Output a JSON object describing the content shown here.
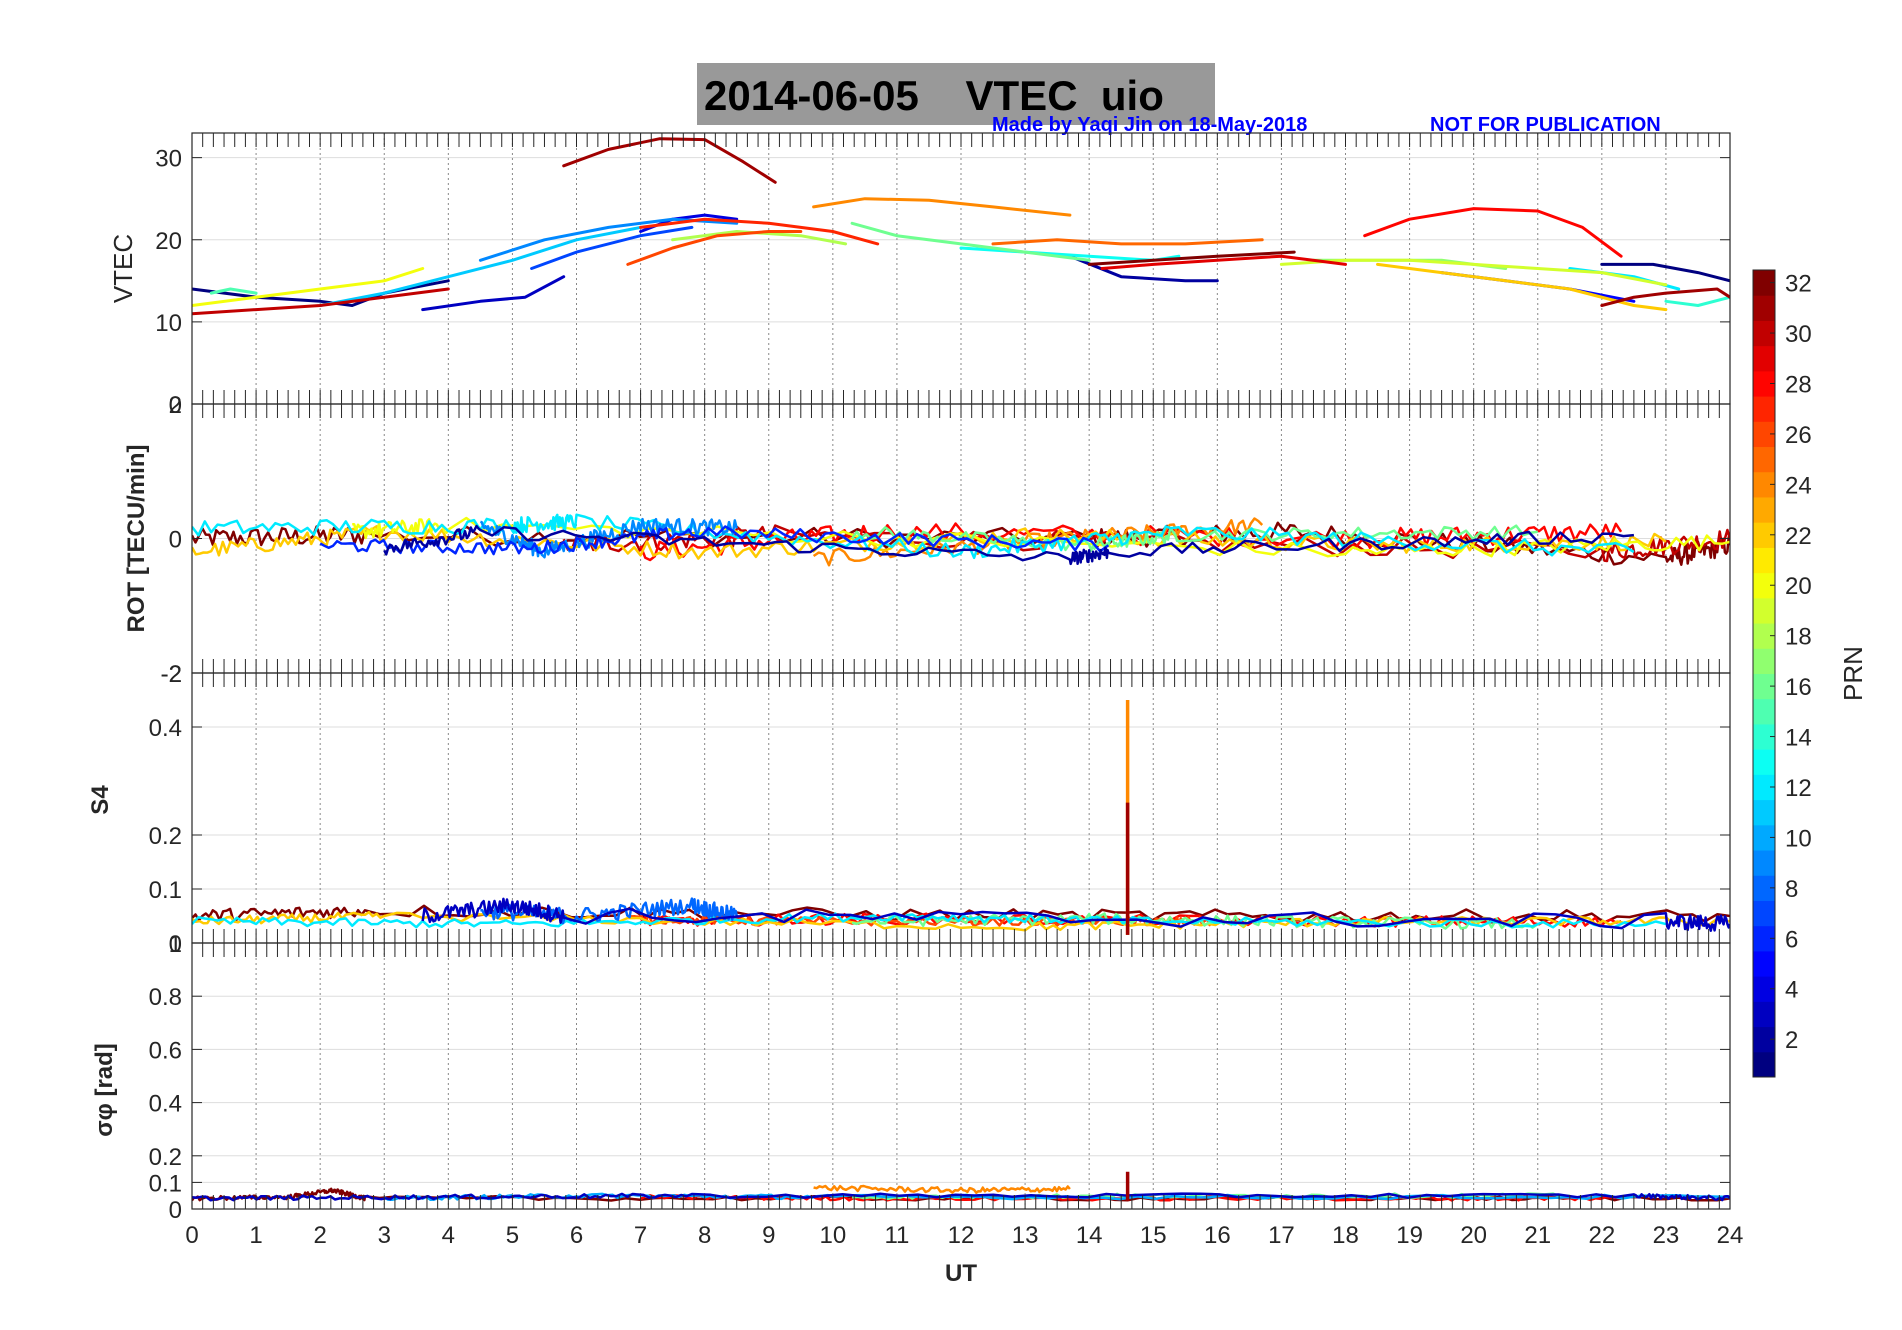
{
  "title": {
    "text": "2014-06-05    VTEC  uio",
    "credit": "Made by Yaqi Jin on 18-May-2018",
    "notice": "NOT FOR PUBLICATION"
  },
  "chart_data": [
    {
      "type": "line",
      "panel": "vtec",
      "ylabel": "VTEC",
      "ylim": [
        0,
        33
      ],
      "yticks": [
        "0",
        "10",
        "20",
        "30"
      ],
      "ytick_values": [
        0,
        10,
        20,
        30
      ],
      "xlim": [
        0,
        24
      ],
      "series": [
        {
          "name": "PRN 1",
          "prn": 1,
          "x": [
            0,
            1,
            2,
            2.5,
            3,
            4
          ],
          "y": [
            14,
            13,
            12.5,
            12,
            13.5,
            15
          ]
        },
        {
          "name": "PRN 3",
          "prn": 3,
          "x": [
            3.6,
            4.5,
            5.2,
            5.8
          ],
          "y": [
            11.5,
            12.5,
            13,
            15.5
          ]
        },
        {
          "name": "PRN 4",
          "prn": 4,
          "x": [
            7,
            7.5,
            8,
            8.5
          ],
          "y": [
            21,
            22.5,
            23,
            22.5
          ]
        },
        {
          "name": "PRN 2",
          "prn": 2,
          "x": [
            13.7,
            14.5,
            15.5,
            16
          ],
          "y": [
            18,
            15.5,
            15,
            15
          ]
        },
        {
          "name": "PRN 5",
          "prn": 5,
          "x": [
            19.5,
            20.5,
            21.5,
            22.5
          ],
          "y": [
            16,
            15,
            14,
            12.5
          ]
        },
        {
          "name": "PRN 1b",
          "prn": 1,
          "x": [
            22,
            22.8,
            23.5,
            24
          ],
          "y": [
            17,
            17,
            16,
            15
          ]
        },
        {
          "name": "PRN 7",
          "prn": 7,
          "x": [
            5.3,
            6,
            7,
            7.8
          ],
          "y": [
            16.5,
            18.5,
            20.5,
            21.5
          ]
        },
        {
          "name": "PRN 9",
          "prn": 9,
          "x": [
            4.5,
            5.5,
            6.5,
            7.5,
            8.5
          ],
          "y": [
            17.5,
            20,
            21.5,
            22.5,
            22
          ]
        },
        {
          "name": "PRN 11",
          "prn": 11,
          "x": [
            2,
            3,
            4,
            5,
            6,
            7
          ],
          "y": [
            12,
            13.5,
            15.5,
            17.5,
            20,
            21.5
          ]
        },
        {
          "name": "PRN 13",
          "prn": 13,
          "x": [
            12,
            13,
            14,
            15,
            15.4
          ],
          "y": [
            19,
            18.5,
            18,
            17.5,
            18
          ]
        },
        {
          "name": "PRN 12",
          "prn": 12,
          "x": [
            21.5,
            22.5,
            23.2
          ],
          "y": [
            16.5,
            15.5,
            14
          ]
        },
        {
          "name": "PRN 14",
          "prn": 14,
          "x": [
            23,
            23.5,
            24
          ],
          "y": [
            12.5,
            12,
            13
          ]
        },
        {
          "name": "PRN 15",
          "prn": 15,
          "x": [
            0.3,
            0.6,
            1
          ],
          "y": [
            13.5,
            14,
            13.5
          ]
        },
        {
          "name": "PRN 16",
          "prn": 16,
          "x": [
            10.3,
            11,
            12,
            13,
            14
          ],
          "y": [
            22,
            20.5,
            19.5,
            18.5,
            17.5
          ]
        },
        {
          "name": "PRN 17",
          "prn": 17,
          "x": [
            17.5,
            18.5,
            19.5,
            20.5
          ],
          "y": [
            17.5,
            17.5,
            17.5,
            16.5
          ]
        },
        {
          "name": "PRN 18",
          "prn": 18,
          "x": [
            7.5,
            8.5,
            9.5,
            10.2
          ],
          "y": [
            20,
            21,
            20.5,
            19.5
          ]
        },
        {
          "name": "PRN 19",
          "prn": 19,
          "x": [
            17,
            18,
            19,
            20,
            21,
            22,
            23
          ],
          "y": [
            17,
            17.5,
            17.5,
            17,
            16.5,
            16,
            14.5
          ]
        },
        {
          "name": "PRN 20",
          "prn": 20,
          "x": [
            0,
            1,
            2,
            3,
            3.6
          ],
          "y": [
            12,
            13,
            14,
            15,
            16.5
          ]
        },
        {
          "name": "PRN 22",
          "prn": 22,
          "x": [
            18.5,
            19.5,
            20.5,
            21.5,
            22.5,
            23
          ],
          "y": [
            17,
            16,
            15,
            14,
            12,
            11.5
          ]
        },
        {
          "name": "PRN 24",
          "prn": 24,
          "x": [
            9.7,
            10.5,
            11.5,
            12.5,
            13.7
          ],
          "y": [
            24,
            25,
            24.8,
            24,
            23
          ]
        },
        {
          "name": "PRN 25",
          "prn": 25,
          "x": [
            12.5,
            13.5,
            14.5,
            15.5,
            16.7
          ],
          "y": [
            19.5,
            20,
            19.5,
            19.5,
            20
          ]
        },
        {
          "name": "PRN 26",
          "prn": 26,
          "x": [
            6.8,
            7.5,
            8.2,
            9,
            9.5
          ],
          "y": [
            17,
            19,
            20.5,
            21,
            21
          ]
        },
        {
          "name": "PRN 28",
          "prn": 28,
          "x": [
            18.3,
            19,
            20,
            21,
            21.7,
            22.3
          ],
          "y": [
            20.5,
            22.5,
            23.8,
            23.5,
            21.5,
            18
          ]
        },
        {
          "name": "PRN 27",
          "prn": 27,
          "x": [
            7,
            8,
            9,
            10,
            10.7
          ],
          "y": [
            21.5,
            22.5,
            22,
            21,
            19.5
          ]
        },
        {
          "name": "PRN 29",
          "prn": 29,
          "x": [
            14.2,
            15,
            16,
            17,
            18
          ],
          "y": [
            16.5,
            17,
            17.5,
            18,
            17
          ]
        },
        {
          "name": "PRN 30",
          "prn": 30,
          "x": [
            0,
            1,
            2,
            3,
            4
          ],
          "y": [
            11,
            11.5,
            12,
            13,
            14
          ]
        },
        {
          "name": "PRN 31",
          "prn": 31,
          "x": [
            5.8,
            6.5,
            7.3,
            8,
            8.6,
            9.1
          ],
          "y": [
            29,
            31,
            32.3,
            32.2,
            29.5,
            27
          ]
        },
        {
          "name": "PRN 32",
          "prn": 32,
          "x": [
            14,
            15,
            16,
            17.2
          ],
          "y": [
            17,
            17.5,
            18,
            18.5
          ]
        },
        {
          "name": "PRN 31b",
          "prn": 31,
          "x": [
            22,
            22.5,
            23,
            23.8,
            24
          ],
          "y": [
            12,
            13,
            13.5,
            14,
            13
          ]
        }
      ]
    },
    {
      "type": "line",
      "panel": "rot",
      "ylabel": "ROT [TECU/min]",
      "ylim": [
        -2,
        2
      ],
      "yticks": [
        "-2",
        "0",
        "2"
      ],
      "ytick_values": [
        -2,
        0,
        2
      ],
      "xlim": [
        0,
        24
      ],
      "series": [
        {
          "name": "PRN 32",
          "prn": 32,
          "x": [
            0,
            2.7,
            14,
            17.2,
            23,
            24
          ],
          "level": [
            0,
            0.05,
            0,
            0.1,
            -0.3,
            -0.1
          ],
          "noise": 0.15
        },
        {
          "name": "PRN 30",
          "prn": 30,
          "x": [
            5.8,
            9.1,
            22,
            24
          ],
          "level": [
            -0.1,
            0.05,
            -0.2,
            0
          ],
          "noise": 0.15
        },
        {
          "name": "PRN 28",
          "prn": 28,
          "x": [
            7,
            10.7,
            18.3,
            22.3
          ],
          "level": [
            -0.2,
            0.1,
            0,
            0.1
          ],
          "noise": 0.15
        },
        {
          "name": "PRN 24",
          "prn": 24,
          "x": [
            9.7,
            13.7,
            16.7
          ],
          "level": [
            -0.3,
            0,
            0.2
          ],
          "noise": 0.12
        },
        {
          "name": "PRN 22",
          "prn": 22,
          "x": [
            0,
            3,
            8,
            13,
            18.5,
            23
          ],
          "level": [
            -0.2,
            0.1,
            -0.2,
            0.05,
            -0.1,
            -0.05
          ],
          "noise": 0.12
        },
        {
          "name": "PRN 20",
          "prn": 20,
          "x": [
            2.5,
            4,
            18,
            24
          ],
          "level": [
            0.1,
            0.2,
            -0.2,
            -0.05
          ],
          "noise": 0.12
        },
        {
          "name": "PRN 16",
          "prn": 16,
          "x": [
            10.3,
            14,
            15.4,
            21
          ],
          "level": [
            0.1,
            -0.1,
            0.05,
            0.1
          ],
          "noise": 0.1
        },
        {
          "name": "PRN 12",
          "prn": 12,
          "x": [
            0,
            5,
            6,
            12,
            15.4,
            22.5
          ],
          "level": [
            0.15,
            0.2,
            0.25,
            -0.2,
            0.1,
            -0.2
          ],
          "noise": 0.12
        },
        {
          "name": "PRN 9",
          "prn": 9,
          "x": [
            4.5,
            5.5,
            7,
            8.5
          ],
          "level": [
            0.2,
            -0.2,
            0.2,
            0.15
          ],
          "noise": 0.12
        },
        {
          "name": "PRN 6",
          "prn": 6,
          "x": [
            2,
            5.3,
            7.8,
            14.3
          ],
          "level": [
            -0.1,
            -0.15,
            0.1,
            -0.1
          ],
          "noise": 0.1
        },
        {
          "name": "PRN 2",
          "prn": 2,
          "x": [
            3,
            4.5,
            13.7,
            14.3,
            22.5
          ],
          "level": [
            -0.15,
            0.1,
            -0.3,
            -0.2,
            0.05
          ],
          "noise": 0.1
        }
      ]
    },
    {
      "type": "line",
      "panel": "s4",
      "ylabel": "S4",
      "ylim": [
        0,
        0.5
      ],
      "yticks": [
        "0",
        "0.1",
        "0.2",
        "0.4"
      ],
      "ytick_values": [
        0,
        0.1,
        0.2,
        0.4
      ],
      "top_label": "-2",
      "xlim": [
        0,
        24
      ],
      "spikes": [
        {
          "prn": 24,
          "x": 14.6,
          "y": 0.45
        },
        {
          "prn": 31,
          "x": 14.6,
          "y": 0.26
        }
      ],
      "series": [
        {
          "name": "PRN 32",
          "prn": 32,
          "x": [
            0,
            2.7,
            14.2,
            24
          ],
          "level": [
            0.05,
            0.06,
            0.05,
            0.05
          ],
          "noise": 0.012
        },
        {
          "name": "PRN 28",
          "prn": 28,
          "x": [
            7,
            10.7,
            18.3,
            22.3
          ],
          "level": [
            0.04,
            0.045,
            0.04,
            0.04
          ],
          "noise": 0.01
        },
        {
          "name": "PRN 26",
          "prn": 26,
          "x": [
            6.8,
            9.5,
            14.5,
            16
          ],
          "level": [
            0.045,
            0.04,
            0.04,
            0.04
          ],
          "noise": 0.008
        },
        {
          "name": "PRN 22",
          "prn": 22,
          "x": [
            0,
            3,
            13,
            18.5,
            24
          ],
          "level": [
            0.04,
            0.05,
            0.03,
            0.04,
            0.04
          ],
          "noise": 0.008
        },
        {
          "name": "PRN 16",
          "prn": 16,
          "x": [
            10.3,
            14,
            17,
            21
          ],
          "level": [
            0.04,
            0.045,
            0.04,
            0.035
          ],
          "noise": 0.01
        },
        {
          "name": "PRN 12",
          "prn": 12,
          "x": [
            0,
            5,
            11,
            15,
            23
          ],
          "level": [
            0.04,
            0.035,
            0.05,
            0.04,
            0.035
          ],
          "noise": 0.008
        },
        {
          "name": "PRN 8",
          "prn": 8,
          "x": [
            4.5,
            6,
            7.8,
            8.5
          ],
          "level": [
            0.06,
            0.05,
            0.07,
            0.05
          ],
          "noise": 0.015
        },
        {
          "name": "PRN 3",
          "prn": 3,
          "x": [
            3.6,
            5,
            5.8,
            23,
            24
          ],
          "level": [
            0.05,
            0.07,
            0.05,
            0.04,
            0.035
          ],
          "noise": 0.015
        }
      ]
    },
    {
      "type": "line",
      "panel": "sigma-phi",
      "ylabel": "σφ [rad]",
      "ylim": [
        0,
        1
      ],
      "yticks": [
        "0",
        "0.1",
        "0.2",
        "0.4",
        "0.6",
        "0.8"
      ],
      "ytick_values": [
        0,
        0.1,
        0.2,
        0.4,
        0.6,
        0.8
      ],
      "top_label": "1",
      "xlim": [
        0,
        24
      ],
      "xlabel": "UT",
      "xticks": [
        "0",
        "1",
        "2",
        "3",
        "4",
        "5",
        "6",
        "7",
        "8",
        "9",
        "10",
        "11",
        "12",
        "13",
        "14",
        "15",
        "16",
        "17",
        "18",
        "19",
        "20",
        "21",
        "22",
        "23",
        "24"
      ],
      "spikes": [
        {
          "prn": 31,
          "x": 14.6,
          "y": 0.14
        }
      ],
      "series": [
        {
          "name": "PRN 32",
          "prn": 32,
          "x": [
            0,
            1.5,
            2.2,
            2.7,
            14,
            24
          ],
          "level": [
            0.04,
            0.045,
            0.07,
            0.04,
            0.04,
            0.04
          ],
          "noise": 0.008
        },
        {
          "name": "PRN 24",
          "prn": 24,
          "x": [
            9.7,
            12,
            13.7
          ],
          "level": [
            0.08,
            0.07,
            0.075
          ],
          "noise": 0.01
        },
        {
          "name": "PRN 28",
          "prn": 28,
          "x": [
            7,
            10.7,
            18.3,
            22.3
          ],
          "level": [
            0.045,
            0.04,
            0.04,
            0.04
          ],
          "noise": 0.008
        },
        {
          "name": "PRN 16",
          "prn": 16,
          "x": [
            10.3,
            15,
            21.5
          ],
          "level": [
            0.045,
            0.05,
            0.05
          ],
          "noise": 0.008
        },
        {
          "name": "PRN 10",
          "prn": 10,
          "x": [
            3,
            6,
            10,
            24
          ],
          "level": [
            0.04,
            0.05,
            0.045,
            0.045
          ],
          "noise": 0.008
        },
        {
          "name": "PRN 3",
          "prn": 3,
          "x": [
            0,
            3.6,
            7.8,
            22.5,
            24
          ],
          "level": [
            0.04,
            0.045,
            0.05,
            0.05,
            0.04
          ],
          "noise": 0.008
        }
      ]
    },
    {
      "type": "colorbar",
      "label": "PRN",
      "range": [
        1,
        32
      ],
      "ticks": [
        "2",
        "4",
        "6",
        "8",
        "10",
        "12",
        "14",
        "16",
        "18",
        "20",
        "22",
        "24",
        "26",
        "28",
        "30",
        "32"
      ],
      "tick_values": [
        2,
        4,
        6,
        8,
        10,
        12,
        14,
        16,
        18,
        20,
        22,
        24,
        26,
        28,
        30,
        32
      ]
    }
  ],
  "colors": {
    "axis": "#262626",
    "grid_vertical": "#888888",
    "grid_horizontal": "#dddddd",
    "title_bg": "#999999",
    "credit_text": "#0000ff"
  }
}
